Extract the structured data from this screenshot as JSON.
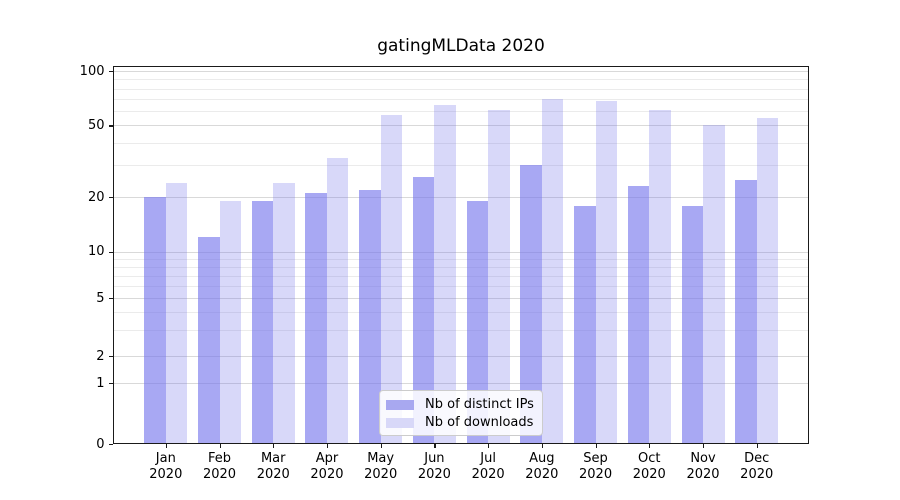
{
  "chart_data": {
    "type": "bar",
    "title": "gatingMLData 2020",
    "categories": [
      "Jan 2020",
      "Feb 2020",
      "Mar 2020",
      "Apr 2020",
      "May 2020",
      "Jun 2020",
      "Jul 2020",
      "Aug 2020",
      "Sep 2020",
      "Oct 2020",
      "Nov 2020",
      "Dec 2020"
    ],
    "x_tick_months": [
      "Jan",
      "Feb",
      "Mar",
      "Apr",
      "May",
      "Jun",
      "Jul",
      "Aug",
      "Sep",
      "Oct",
      "Nov",
      "Dec"
    ],
    "x_tick_year": "2020",
    "series": [
      {
        "name": "Nb of distinct IPs",
        "values": [
          20,
          12,
          19,
          21,
          22,
          26,
          19,
          30,
          18,
          23,
          18,
          25
        ],
        "color": "rgba(115,115,235,0.62)",
        "swatch_color": "#a8a8f0"
      },
      {
        "name": "Nb of downloads",
        "values": [
          24,
          19,
          24,
          33,
          57,
          65,
          61,
          70,
          68,
          61,
          50,
          55
        ],
        "color": "rgba(115,115,235,0.28)",
        "swatch_color": "#d8d8f8"
      }
    ],
    "y_axis": {
      "scale": "symlog",
      "major_tick_labels": [
        "0",
        "1",
        "2",
        "5",
        "10",
        "20",
        "50",
        "100"
      ],
      "major_tick_values": [
        0,
        1,
        2,
        5,
        10,
        20,
        50,
        100
      ],
      "minor_gridline_values": [
        3,
        4,
        6,
        7,
        8,
        9,
        30,
        40,
        60,
        70,
        80,
        90
      ],
      "ylim": [
        0,
        107
      ]
    },
    "legend": {
      "position": "lower-center"
    },
    "grid": true,
    "colors": {
      "major_grid": "#d9d9d9",
      "minor_grid": "#ebebeb",
      "spine": "#1a1a1a",
      "text": "#000000",
      "legend_border": "#cccccc",
      "background": "#ffffff"
    }
  }
}
